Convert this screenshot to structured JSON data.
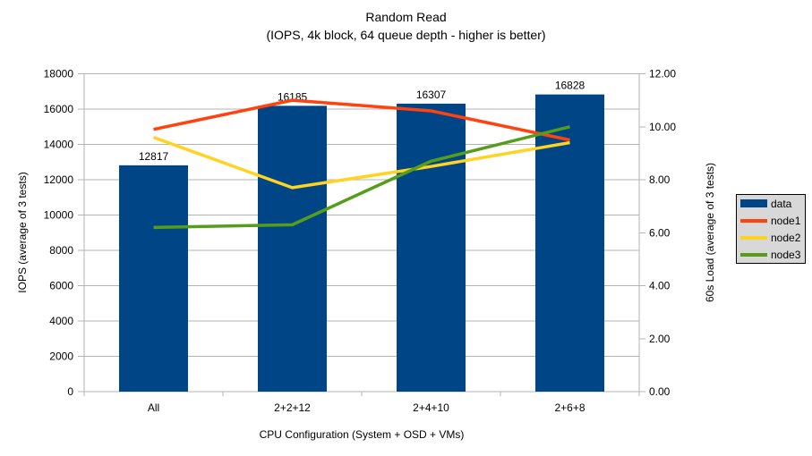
{
  "chart_data": {
    "type": "bar",
    "combo": "bars (left axis) + lines (right axis)",
    "title": "Random Read",
    "subtitle": "(IOPS, 4k block, 64 queue depth - higher is better)",
    "xlabel": "CPU Configuration (System + OSD + VMs)",
    "categories": [
      "All",
      "2+2+12",
      "2+4+10",
      "2+6+8"
    ],
    "bar_series": {
      "name": "data",
      "axis": "left",
      "color": "#004586",
      "values": [
        12817,
        16185,
        16307,
        16828
      ],
      "value_labels": [
        "12817",
        "16185",
        "16307",
        "16828"
      ]
    },
    "line_series": [
      {
        "name": "node1",
        "axis": "right",
        "color": "#ff420e",
        "values": [
          9.9,
          11.0,
          10.6,
          9.5
        ]
      },
      {
        "name": "node2",
        "axis": "right",
        "color": "#ffd320",
        "values": [
          9.6,
          7.7,
          8.5,
          9.4
        ]
      },
      {
        "name": "node3",
        "axis": "right",
        "color": "#579d1c",
        "values": [
          6.2,
          6.3,
          8.7,
          10.0
        ]
      }
    ],
    "left_axis": {
      "label": "IOPS (average of 3 tests)",
      "min": 0,
      "max": 18000,
      "step": 2000,
      "ticks": [
        "0",
        "2000",
        "4000",
        "6000",
        "8000",
        "10000",
        "12000",
        "14000",
        "16000",
        "18000"
      ]
    },
    "right_axis": {
      "label": "60s Load (average of 3 tests)",
      "min": 0,
      "max": 12,
      "step": 2,
      "ticks": [
        "0.00",
        "2.00",
        "4.00",
        "6.00",
        "8.00",
        "10.00",
        "12.00"
      ]
    },
    "grid": "horizontal gridlines at left-axis ticks",
    "legend_position": "right",
    "colors": {
      "background": "#ffffff",
      "grid": "#b3b3b3",
      "axis": "#b3b3b3",
      "text": "#000000",
      "legend_bg": "#d8d8d8",
      "legend_border": "#000000"
    }
  }
}
